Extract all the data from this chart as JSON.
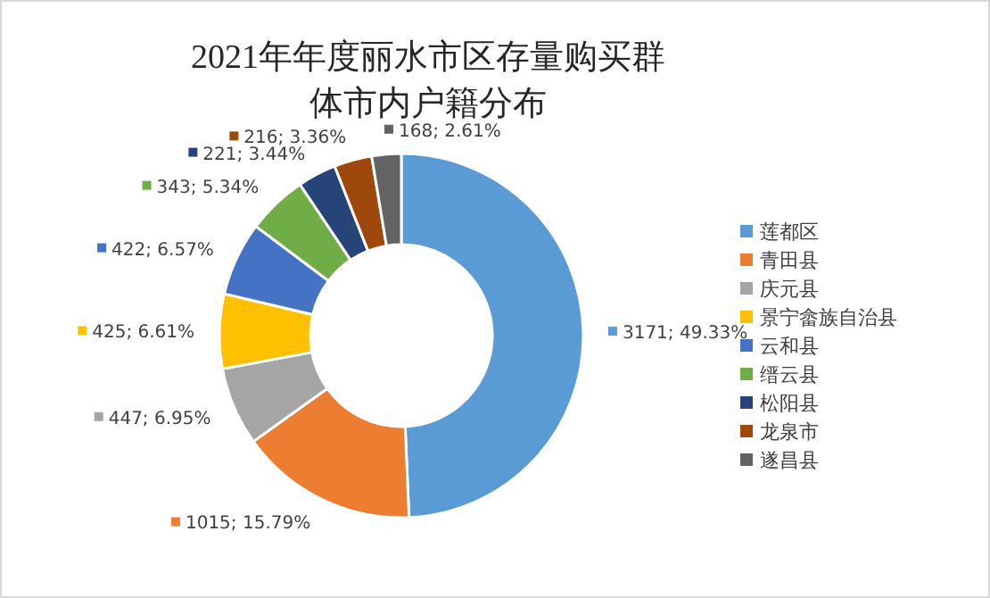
{
  "chart_data": {
    "type": "donut",
    "title": "2021年年度丽水市区存量购买群体市内户籍分布",
    "categories": [
      "莲都区",
      "青田县",
      "庆元县",
      "景宁畲族自治县",
      "云和县",
      "缙云县",
      "松阳县",
      "龙泉市",
      "遂昌县"
    ],
    "values": [
      3171,
      1015,
      447,
      425,
      422,
      343,
      221,
      216,
      168
    ],
    "value_labels": [
      "3171; 49.33%",
      "1015; 15.79%",
      "447; 6.95%",
      "425; 6.61%",
      "422; 6.57%",
      "343; 5.34%",
      "221; 3.44%",
      "216; 3.36%",
      "168; 2.61%"
    ],
    "colors": [
      "#5b9bd5",
      "#ed7d31",
      "#a5a5a5",
      "#ffc000",
      "#4472c4",
      "#70ad47",
      "#264478",
      "#9e480e",
      "#636363"
    ],
    "legend": "right"
  }
}
